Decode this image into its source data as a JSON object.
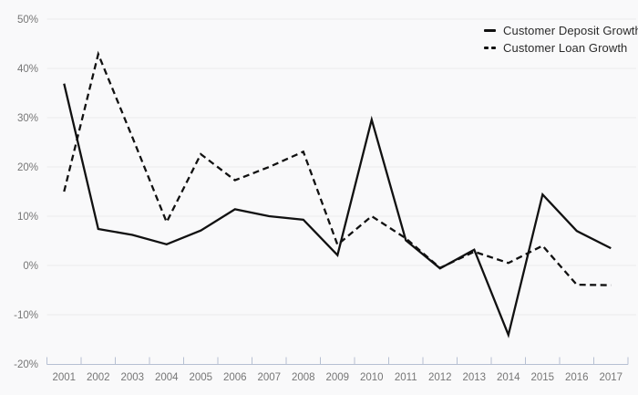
{
  "chart_data": {
    "type": "line",
    "x": [
      "2001",
      "2002",
      "2003",
      "2004",
      "2005",
      "2006",
      "2007",
      "2008",
      "2009",
      "2010",
      "2011",
      "2012",
      "2013",
      "2014",
      "2015",
      "2016",
      "2017"
    ],
    "series": [
      {
        "name": "Customer Deposit Growth",
        "style": "solid",
        "values": [
          36.9,
          7.4,
          6.2,
          4.3,
          7.1,
          11.4,
          10.0,
          9.3,
          2.1,
          29.6,
          5.1,
          -0.6,
          3.2,
          -14.1,
          14.4,
          7.0,
          3.5
        ]
      },
      {
        "name": "Customer Loan Growth",
        "style": "dashed",
        "values": [
          15.0,
          42.9,
          26.0,
          8.8,
          22.6,
          17.3,
          20.0,
          23.1,
          4.2,
          10.0,
          5.5,
          -0.5,
          2.8,
          0.5,
          4.0,
          -3.9,
          -4.0
        ]
      }
    ],
    "xlabel": "",
    "ylabel": "",
    "ylim": [
      -20,
      50
    ],
    "yticks": {
      "values": [
        50,
        40,
        30,
        20,
        10,
        0,
        -10,
        -20
      ],
      "labels": [
        "50%",
        "40%",
        "30%",
        "20%",
        "10%",
        "0%",
        "-10%",
        "-20%"
      ]
    },
    "grid": true,
    "legend_position": "top-right",
    "colors": {
      "line": "#111111",
      "grid": "#ececec",
      "axis": "#b6c0d2",
      "tick_label": "#767676",
      "legend_text": "#2b2b2b",
      "background": "#f9f9fa"
    }
  },
  "legend": {
    "items": [
      {
        "label": "Customer Deposit Growth",
        "swatch": "solid-line"
      },
      {
        "label": "Customer Loan Growth",
        "swatch": "dashed-line"
      }
    ]
  }
}
